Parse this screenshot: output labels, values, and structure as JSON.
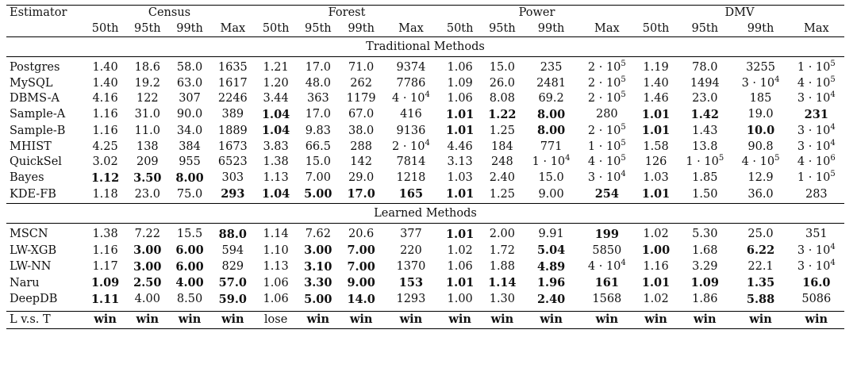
{
  "header": {
    "estimator_label": "Estimator",
    "datasets": [
      "Census",
      "Forest",
      "Power",
      "DMV"
    ],
    "subcolumns": [
      "50th",
      "95th",
      "99th",
      "Max"
    ]
  },
  "sections": [
    {
      "title": "Traditional Methods",
      "rows": [
        {
          "name": "Postgres",
          "bold_name": false,
          "cells": [
            {
              "v": "1.40"
            },
            {
              "v": "18.6"
            },
            {
              "v": "58.0"
            },
            {
              "v": "1635"
            },
            {
              "v": "1.21"
            },
            {
              "v": "17.0"
            },
            {
              "v": "71.0"
            },
            {
              "v": "9374"
            },
            {
              "v": "1.06"
            },
            {
              "v": "15.0"
            },
            {
              "v": "235"
            },
            {
              "v": "2 · 10",
              "sup": "5"
            },
            {
              "v": "1.19"
            },
            {
              "v": "78.0"
            },
            {
              "v": "3255"
            },
            {
              "v": "1 · 10",
              "sup": "5"
            }
          ]
        },
        {
          "name": "MySQL",
          "bold_name": false,
          "cells": [
            {
              "v": "1.40"
            },
            {
              "v": "19.2"
            },
            {
              "v": "63.0"
            },
            {
              "v": "1617"
            },
            {
              "v": "1.20"
            },
            {
              "v": "48.0"
            },
            {
              "v": "262"
            },
            {
              "v": "7786"
            },
            {
              "v": "1.09"
            },
            {
              "v": "26.0"
            },
            {
              "v": "2481"
            },
            {
              "v": "2 · 10",
              "sup": "5"
            },
            {
              "v": "1.40"
            },
            {
              "v": "1494"
            },
            {
              "v": "3 · 10",
              "sup": "4"
            },
            {
              "v": "4 · 10",
              "sup": "5"
            }
          ]
        },
        {
          "name": "DBMS-A",
          "bold_name": false,
          "cells": [
            {
              "v": "4.16"
            },
            {
              "v": "122"
            },
            {
              "v": "307"
            },
            {
              "v": "2246"
            },
            {
              "v": "3.44"
            },
            {
              "v": "363"
            },
            {
              "v": "1179"
            },
            {
              "v": "4 · 10",
              "sup": "4"
            },
            {
              "v": "1.06"
            },
            {
              "v": "8.08"
            },
            {
              "v": "69.2"
            },
            {
              "v": "2 · 10",
              "sup": "5"
            },
            {
              "v": "1.46"
            },
            {
              "v": "23.0"
            },
            {
              "v": "185"
            },
            {
              "v": "3 · 10",
              "sup": "4"
            }
          ]
        },
        {
          "name": "Sample-A",
          "bold_name": false,
          "cells": [
            {
              "v": "1.16"
            },
            {
              "v": "31.0"
            },
            {
              "v": "90.0"
            },
            {
              "v": "389"
            },
            {
              "v": "1.04",
              "b": true
            },
            {
              "v": "17.0"
            },
            {
              "v": "67.0"
            },
            {
              "v": "416"
            },
            {
              "v": "1.01",
              "b": true
            },
            {
              "v": "1.22",
              "b": true
            },
            {
              "v": "8.00",
              "b": true
            },
            {
              "v": "280"
            },
            {
              "v": "1.01",
              "b": true
            },
            {
              "v": "1.42",
              "b": true
            },
            {
              "v": "19.0"
            },
            {
              "v": "231",
              "b": true
            }
          ]
        },
        {
          "name": "Sample-B",
          "bold_name": false,
          "cells": [
            {
              "v": "1.16"
            },
            {
              "v": "11.0"
            },
            {
              "v": "34.0"
            },
            {
              "v": "1889"
            },
            {
              "v": "1.04",
              "b": true
            },
            {
              "v": "9.83"
            },
            {
              "v": "38.0"
            },
            {
              "v": "9136"
            },
            {
              "v": "1.01",
              "b": true
            },
            {
              "v": "1.25"
            },
            {
              "v": "8.00",
              "b": true
            },
            {
              "v": "2 · 10",
              "sup": "5"
            },
            {
              "v": "1.01",
              "b": true
            },
            {
              "v": "1.43"
            },
            {
              "v": "10.0",
              "b": true
            },
            {
              "v": "3 · 10",
              "sup": "4"
            }
          ]
        },
        {
          "name": "MHIST",
          "bold_name": false,
          "cells": [
            {
              "v": "4.25"
            },
            {
              "v": "138"
            },
            {
              "v": "384"
            },
            {
              "v": "1673"
            },
            {
              "v": "3.83"
            },
            {
              "v": "66.5"
            },
            {
              "v": "288"
            },
            {
              "v": "2 · 10",
              "sup": "4"
            },
            {
              "v": "4.46"
            },
            {
              "v": "184"
            },
            {
              "v": "771"
            },
            {
              "v": "1 · 10",
              "sup": "5"
            },
            {
              "v": "1.58"
            },
            {
              "v": "13.8"
            },
            {
              "v": "90.8"
            },
            {
              "v": "3 · 10",
              "sup": "4"
            }
          ]
        },
        {
          "name": "QuickSel",
          "bold_name": false,
          "cells": [
            {
              "v": "3.02"
            },
            {
              "v": "209"
            },
            {
              "v": "955"
            },
            {
              "v": "6523"
            },
            {
              "v": "1.38"
            },
            {
              "v": "15.0"
            },
            {
              "v": "142"
            },
            {
              "v": "7814"
            },
            {
              "v": "3.13"
            },
            {
              "v": "248"
            },
            {
              "v": "1 · 10",
              "sup": "4"
            },
            {
              "v": "4 · 10",
              "sup": "5"
            },
            {
              "v": "126"
            },
            {
              "v": "1 · 10",
              "sup": "5"
            },
            {
              "v": "4 · 10",
              "sup": "5"
            },
            {
              "v": "4 · 10",
              "sup": "6"
            }
          ]
        },
        {
          "name": "Bayes",
          "bold_name": false,
          "cells": [
            {
              "v": "1.12",
              "b": true
            },
            {
              "v": "3.50",
              "b": true
            },
            {
              "v": "8.00",
              "b": true
            },
            {
              "v": "303"
            },
            {
              "v": "1.13"
            },
            {
              "v": "7.00"
            },
            {
              "v": "29.0"
            },
            {
              "v": "1218"
            },
            {
              "v": "1.03"
            },
            {
              "v": "2.40"
            },
            {
              "v": "15.0"
            },
            {
              "v": "3 · 10",
              "sup": "4"
            },
            {
              "v": "1.03"
            },
            {
              "v": "1.85"
            },
            {
              "v": "12.9"
            },
            {
              "v": "1 · 10",
              "sup": "5"
            }
          ]
        },
        {
          "name": "KDE-FB",
          "bold_name": false,
          "cells": [
            {
              "v": "1.18"
            },
            {
              "v": "23.0"
            },
            {
              "v": "75.0"
            },
            {
              "v": "293",
              "b": true
            },
            {
              "v": "1.04",
              "b": true
            },
            {
              "v": "5.00",
              "b": true
            },
            {
              "v": "17.0",
              "b": true
            },
            {
              "v": "165",
              "b": true
            },
            {
              "v": "1.01",
              "b": true
            },
            {
              "v": "1.25"
            },
            {
              "v": "9.00"
            },
            {
              "v": "254",
              "b": true
            },
            {
              "v": "1.01",
              "b": true
            },
            {
              "v": "1.50"
            },
            {
              "v": "36.0"
            },
            {
              "v": "283"
            }
          ]
        }
      ]
    },
    {
      "title": "Learned Methods",
      "rows": [
        {
          "name": "MSCN",
          "bold_name": false,
          "cells": [
            {
              "v": "1.38"
            },
            {
              "v": "7.22"
            },
            {
              "v": "15.5"
            },
            {
              "v": "88.0",
              "b": true
            },
            {
              "v": "1.14"
            },
            {
              "v": "7.62"
            },
            {
              "v": "20.6"
            },
            {
              "v": "377"
            },
            {
              "v": "1.01",
              "b": true
            },
            {
              "v": "2.00"
            },
            {
              "v": "9.91"
            },
            {
              "v": "199",
              "b": true
            },
            {
              "v": "1.02"
            },
            {
              "v": "5.30"
            },
            {
              "v": "25.0"
            },
            {
              "v": "351"
            }
          ]
        },
        {
          "name": "LW-XGB",
          "bold_name": false,
          "cells": [
            {
              "v": "1.16"
            },
            {
              "v": "3.00",
              "b": true
            },
            {
              "v": "6.00",
              "b": true
            },
            {
              "v": "594"
            },
            {
              "v": "1.10"
            },
            {
              "v": "3.00",
              "b": true
            },
            {
              "v": "7.00",
              "b": true
            },
            {
              "v": "220"
            },
            {
              "v": "1.02"
            },
            {
              "v": "1.72"
            },
            {
              "v": "5.04",
              "b": true
            },
            {
              "v": "5850"
            },
            {
              "v": "1.00",
              "b": true
            },
            {
              "v": "1.68"
            },
            {
              "v": "6.22",
              "b": true
            },
            {
              "v": "3 · 10",
              "sup": "4"
            }
          ]
        },
        {
          "name": "LW-NN",
          "bold_name": false,
          "cells": [
            {
              "v": "1.17"
            },
            {
              "v": "3.00",
              "b": true
            },
            {
              "v": "6.00",
              "b": true
            },
            {
              "v": "829"
            },
            {
              "v": "1.13"
            },
            {
              "v": "3.10",
              "b": true
            },
            {
              "v": "7.00",
              "b": true
            },
            {
              "v": "1370"
            },
            {
              "v": "1.06"
            },
            {
              "v": "1.88"
            },
            {
              "v": "4.89",
              "b": true
            },
            {
              "v": "4 · 10",
              "sup": "4"
            },
            {
              "v": "1.16"
            },
            {
              "v": "3.29"
            },
            {
              "v": "22.1"
            },
            {
              "v": "3 · 10",
              "sup": "4"
            }
          ]
        },
        {
          "name": "Naru",
          "bold_name": false,
          "cells": [
            {
              "v": "1.09",
              "b": true
            },
            {
              "v": "2.50",
              "b": true
            },
            {
              "v": "4.00",
              "b": true
            },
            {
              "v": "57.0",
              "b": true
            },
            {
              "v": "1.06"
            },
            {
              "v": "3.30",
              "b": true
            },
            {
              "v": "9.00",
              "b": true
            },
            {
              "v": "153",
              "b": true
            },
            {
              "v": "1.01",
              "b": true
            },
            {
              "v": "1.14",
              "b": true
            },
            {
              "v": "1.96",
              "b": true
            },
            {
              "v": "161",
              "b": true
            },
            {
              "v": "1.01",
              "b": true
            },
            {
              "v": "1.09",
              "b": true
            },
            {
              "v": "1.35",
              "b": true
            },
            {
              "v": "16.0",
              "b": true
            }
          ]
        },
        {
          "name": "DeepDB",
          "bold_name": false,
          "cells": [
            {
              "v": "1.11",
              "b": true
            },
            {
              "v": "4.00"
            },
            {
              "v": "8.50"
            },
            {
              "v": "59.0",
              "b": true
            },
            {
              "v": "1.06"
            },
            {
              "v": "5.00",
              "b": true
            },
            {
              "v": "14.0",
              "b": true
            },
            {
              "v": "1293"
            },
            {
              "v": "1.00"
            },
            {
              "v": "1.30"
            },
            {
              "v": "2.40",
              "b": true
            },
            {
              "v": "1568"
            },
            {
              "v": "1.02"
            },
            {
              "v": "1.86"
            },
            {
              "v": "5.88",
              "b": true
            },
            {
              "v": "5086"
            }
          ]
        }
      ]
    }
  ],
  "summary_row": {
    "name": "L v.s. T",
    "cells": [
      {
        "v": "win",
        "b": true
      },
      {
        "v": "win",
        "b": true
      },
      {
        "v": "win",
        "b": true
      },
      {
        "v": "win",
        "b": true
      },
      {
        "v": "lose"
      },
      {
        "v": "win",
        "b": true
      },
      {
        "v": "win",
        "b": true
      },
      {
        "v": "win",
        "b": true
      },
      {
        "v": "win",
        "b": true
      },
      {
        "v": "win",
        "b": true
      },
      {
        "v": "win",
        "b": true
      },
      {
        "v": "win",
        "b": true
      },
      {
        "v": "win",
        "b": true
      },
      {
        "v": "win",
        "b": true
      },
      {
        "v": "win",
        "b": true
      },
      {
        "v": "win",
        "b": true
      }
    ]
  }
}
